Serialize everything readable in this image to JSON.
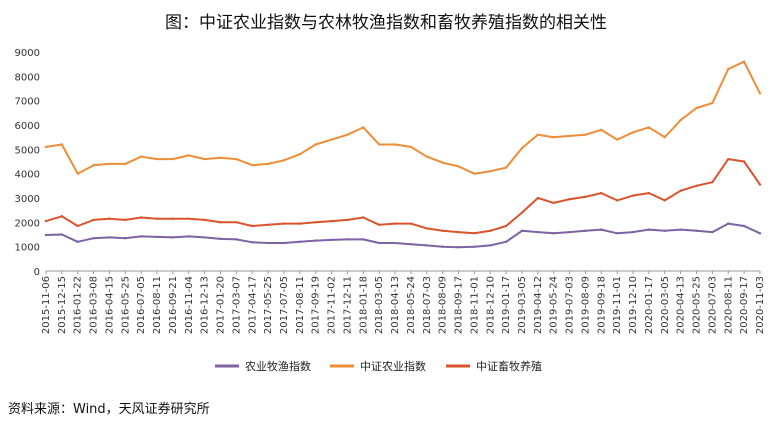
{
  "title": "图：中证农业指数与农林牧渔指数和畜牧养殖指数的相关性",
  "source": "资料来源：Wind，天风证券研究所",
  "chart_data": {
    "type": "line",
    "title": "图：中证农业指数与农林牧渔指数和畜牧养殖指数的相关性",
    "xlabel": "",
    "ylabel": "",
    "ylim": [
      0,
      9000
    ],
    "yticks": [
      0,
      1000,
      2000,
      3000,
      4000,
      5000,
      6000,
      7000,
      8000,
      9000
    ],
    "grid": false,
    "legend_position": "bottom",
    "x": [
      "2015-11-06",
      "2015-12-15",
      "2016-01-22",
      "2016-03-08",
      "2016-04-15",
      "2016-05-25",
      "2016-07-05",
      "2016-08-11",
      "2016-09-21",
      "2016-11-04",
      "2016-12-13",
      "2017-01-20",
      "2017-03-07",
      "2017-04-17",
      "2017-05-25",
      "2017-07-05",
      "2017-08-11",
      "2017-09-19",
      "2017-11-02",
      "2017-12-11",
      "2018-01-18",
      "2018-03-05",
      "2018-04-13",
      "2018-05-24",
      "2018-07-03",
      "2018-08-09",
      "2018-09-17",
      "2018-11-01",
      "2018-12-10",
      "2019-01-17",
      "2019-03-05",
      "2019-04-12",
      "2019-05-24",
      "2019-07-03",
      "2019-08-09",
      "2019-09-18",
      "2019-11-01",
      "2019-12-10",
      "2020-01-17",
      "2020-03-05",
      "2020-04-13",
      "2020-05-25",
      "2020-07-03",
      "2020-08-11",
      "2020-09-17",
      "2020-11-03"
    ],
    "series": [
      {
        "name": "农业牧渔指数",
        "color": "#7e62a3",
        "values": [
          1480,
          1500,
          1200,
          1350,
          1380,
          1350,
          1420,
          1400,
          1380,
          1420,
          1380,
          1320,
          1300,
          1180,
          1150,
          1150,
          1200,
          1250,
          1280,
          1300,
          1300,
          1150,
          1150,
          1100,
          1050,
          1000,
          980,
          1000,
          1050,
          1200,
          1650,
          1600,
          1550,
          1600,
          1650,
          1700,
          1550,
          1600,
          1700,
          1650,
          1700,
          1650,
          1600,
          1950,
          1850,
          1550
        ]
      },
      {
        "name": "中证农业指数",
        "color": "#ed8d37",
        "values": [
          5100,
          5200,
          4000,
          4350,
          4400,
          4400,
          4700,
          4600,
          4600,
          4750,
          4600,
          4650,
          4600,
          4350,
          4400,
          4550,
          4800,
          5200,
          5400,
          5600,
          5900,
          5200,
          5200,
          5100,
          4700,
          4450,
          4300,
          4000,
          4100,
          4250,
          5050,
          5600,
          5500,
          5550,
          5600,
          5800,
          5400,
          5700,
          5900,
          5500,
          6200,
          6700,
          6900,
          8300,
          8600,
          7300
        ]
      },
      {
        "name": "中证畜牧养殖",
        "color": "#d9542c",
        "values": [
          2050,
          2250,
          1850,
          2100,
          2150,
          2100,
          2200,
          2150,
          2150,
          2150,
          2100,
          2000,
          2000,
          1850,
          1900,
          1950,
          1950,
          2000,
          2050,
          2100,
          2200,
          1900,
          1950,
          1950,
          1750,
          1650,
          1600,
          1550,
          1650,
          1850,
          2400,
          3000,
          2800,
          2950,
          3050,
          3200,
          2900,
          3100,
          3200,
          2900,
          3300,
          3500,
          3650,
          4600,
          4500,
          3550
        ]
      }
    ]
  }
}
